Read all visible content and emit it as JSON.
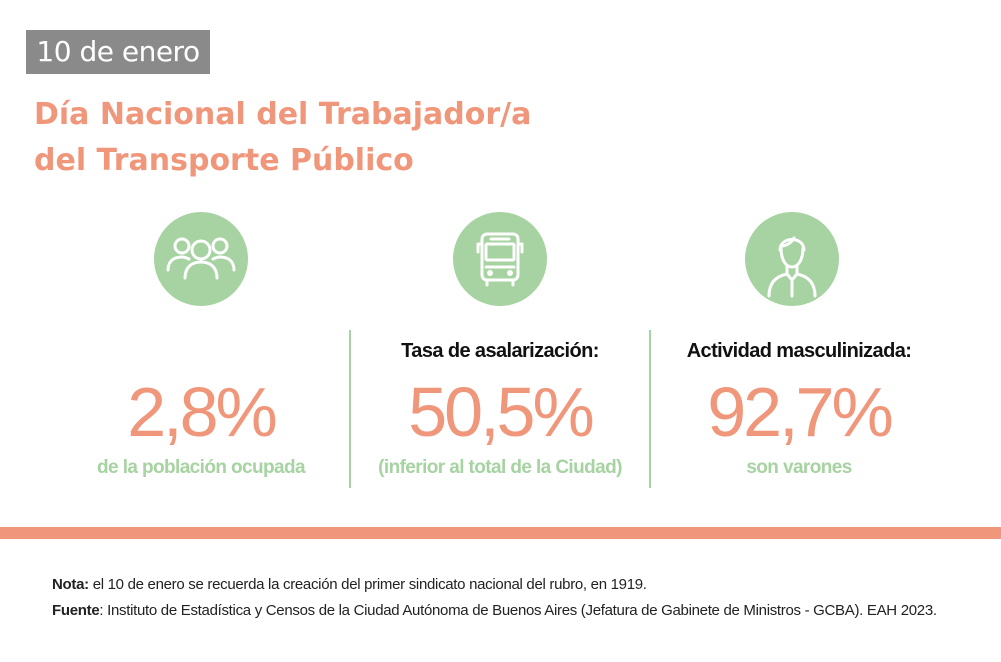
{
  "header": {
    "date_badge": "10 de enero",
    "title_line1": "Día Nacional del Trabajador/a",
    "title_line2": "del Transporte Público"
  },
  "colors": {
    "accent_orange": "#f0967a",
    "accent_green": "#a6d3a1",
    "badge_gray": "#8a8a8a"
  },
  "stats": [
    {
      "icon": "people-group-icon",
      "heading": "",
      "value": "2,8%",
      "caption": "de la población ocupada"
    },
    {
      "icon": "bus-icon",
      "heading": "Tasa de asalarización:",
      "value": "50,5%",
      "caption": "(inferior al total de la Ciudad)"
    },
    {
      "icon": "man-icon",
      "heading": "Actividad masculinizada:",
      "value": "92,7%",
      "caption": "son varones"
    }
  ],
  "footer": {
    "note_label": "Nota:",
    "note_text": " el 10 de enero se recuerda la creación del primer sindicato nacional del rubro, en 1919.",
    "source_label": "Fuente",
    "source_text": ": Instituto de Estadística y Censos de la Ciudad Autónoma de Buenos Aires (Jefatura de Gabinete de Ministros - GCBA). EAH 2023."
  }
}
